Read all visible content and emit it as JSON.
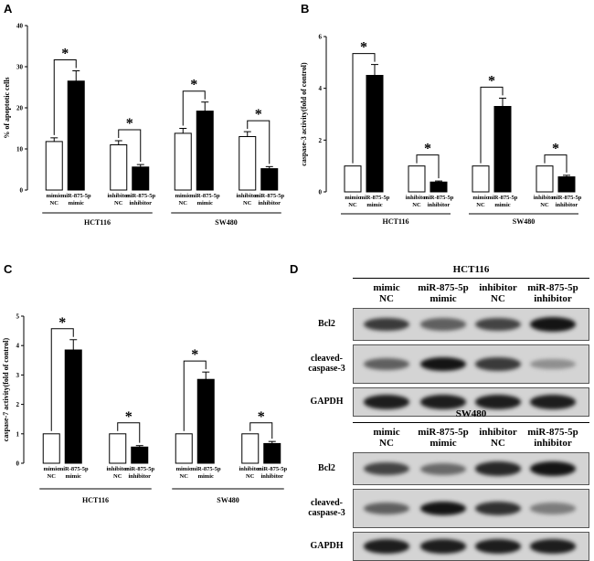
{
  "panels": [
    {
      "id": "A",
      "letter": "A",
      "ylabel": "% of apoptotic cells",
      "yticks": [
        0,
        10,
        20,
        30,
        40
      ],
      "ylim": [
        0,
        40
      ],
      "groups": [
        "HCT116",
        "SW480"
      ]
    },
    {
      "id": "B",
      "letter": "B",
      "ylabel": "caspase-3 activity(fold of control)",
      "yticks": [
        0,
        2,
        4,
        6
      ],
      "ylim": [
        0,
        6
      ],
      "groups": [
        "HCT116",
        "SW480"
      ]
    },
    {
      "id": "C",
      "letter": "C",
      "ylabel": "caspase-7 activity(fold of control)",
      "yticks": [
        0,
        1,
        2,
        3,
        4,
        5
      ],
      "ylim": [
        0,
        5
      ],
      "groups": [
        "HCT116",
        "SW480"
      ]
    }
  ],
  "chart_data": [
    {
      "type": "bar",
      "title": "",
      "ylabel": "% of apoptotic cells",
      "ylim": [
        0,
        40
      ],
      "categories": [
        "mimic NC",
        "miR-875-5p mimic",
        "inhibitor NC",
        "miR-875-5p inhibitor",
        "mimic NC",
        "miR-875-5p mimic",
        "inhibitor NC",
        "miR-875-5p inhibitor"
      ],
      "category_lines": [
        [
          "mimic",
          "NC"
        ],
        [
          "miR-875-5p",
          "mimic"
        ],
        [
          "inhibitor",
          "NC"
        ],
        [
          "miR-875-5p",
          "inhibitor"
        ],
        [
          "mimic",
          "NC"
        ],
        [
          "miR-875-5p",
          "mimic"
        ],
        [
          "inhibitor",
          "NC"
        ],
        [
          "miR-875-5p",
          "inhibitor"
        ]
      ],
      "values": [
        11.8,
        26.5,
        11.0,
        5.6,
        13.8,
        19.2,
        13.0,
        5.2
      ],
      "errors": [
        0.9,
        2.5,
        1.0,
        0.6,
        1.2,
        2.2,
        1.2,
        0.5
      ],
      "fill": [
        "white",
        "black",
        "white",
        "black",
        "white",
        "black",
        "white",
        "black"
      ],
      "significance": [
        [
          0,
          1,
          "*"
        ],
        [
          2,
          3,
          "*"
        ],
        [
          4,
          5,
          "*"
        ],
        [
          6,
          7,
          "*"
        ]
      ],
      "groups": [
        {
          "name": "HCT116",
          "from": 0,
          "to": 3
        },
        {
          "name": "SW480",
          "from": 4,
          "to": 7
        }
      ]
    },
    {
      "type": "bar",
      "title": "",
      "ylabel": "caspase-3 activity(fold of control)",
      "ylim": [
        0,
        6
      ],
      "categories": [
        "mimic NC",
        "miR-875-5p mimic",
        "inhibitor NC",
        "miR-875-5p inhibitor",
        "mimic NC",
        "miR-875-5p mimic",
        "inhibitor NC",
        "miR-875-5p inhibitor"
      ],
      "category_lines": [
        [
          "mimic",
          "NC"
        ],
        [
          "miR-875-5p",
          "mimic"
        ],
        [
          "inhibitor",
          "NC"
        ],
        [
          "miR-875-5p",
          "inhibitor"
        ],
        [
          "mimic",
          "NC"
        ],
        [
          "miR-875-5p",
          "mimic"
        ],
        [
          "inhibitor",
          "NC"
        ],
        [
          "miR-875-5p",
          "inhibitor"
        ]
      ],
      "values": [
        1.0,
        4.5,
        1.0,
        0.38,
        1.0,
        3.3,
        1.0,
        0.58
      ],
      "errors": [
        0,
        0.42,
        0,
        0.04,
        0,
        0.32,
        0,
        0.06
      ],
      "fill": [
        "white",
        "black",
        "white",
        "black",
        "white",
        "black",
        "white",
        "black"
      ],
      "significance": [
        [
          0,
          1,
          "*"
        ],
        [
          2,
          3,
          "*"
        ],
        [
          4,
          5,
          "*"
        ],
        [
          6,
          7,
          "*"
        ]
      ],
      "groups": [
        {
          "name": "HCT116",
          "from": 0,
          "to": 3
        },
        {
          "name": "SW480",
          "from": 4,
          "to": 7
        }
      ]
    },
    {
      "type": "bar",
      "title": "",
      "ylabel": "caspase-7 activity(fold of control)",
      "ylim": [
        0,
        5
      ],
      "categories": [
        "mimic NC",
        "miR-875-5p mimic",
        "inhibitor NC",
        "miR-875-5p inhibitor",
        "mimic NC",
        "miR-875-5p mimic",
        "inhibitor NC",
        "miR-875-5p inhibitor"
      ],
      "category_lines": [
        [
          "mimic",
          "NC"
        ],
        [
          "miR-875-5p",
          "mimic"
        ],
        [
          "inhibitor",
          "NC"
        ],
        [
          "miR-875-5p",
          "inhibitor"
        ],
        [
          "mimic",
          "NC"
        ],
        [
          "miR-875-5p",
          "mimic"
        ],
        [
          "inhibitor",
          "NC"
        ],
        [
          "miR-875-5p",
          "inhibitor"
        ]
      ],
      "values": [
        1.0,
        3.85,
        1.0,
        0.55,
        1.0,
        2.85,
        1.0,
        0.67
      ],
      "errors": [
        0,
        0.35,
        0,
        0.05,
        0,
        0.25,
        0,
        0.07
      ],
      "fill": [
        "white",
        "black",
        "white",
        "black",
        "white",
        "black",
        "white",
        "black"
      ],
      "significance": [
        [
          0,
          1,
          "*"
        ],
        [
          2,
          3,
          "*"
        ],
        [
          4,
          5,
          "*"
        ],
        [
          6,
          7,
          "*"
        ]
      ],
      "groups": [
        {
          "name": "HCT116",
          "from": 0,
          "to": 3
        },
        {
          "name": "SW480",
          "from": 4,
          "to": 7
        }
      ]
    }
  ],
  "western": {
    "letter": "D",
    "blocks": [
      {
        "cell_line": "HCT116",
        "columns": [
          [
            "mimic",
            "NC"
          ],
          [
            "miR-875-5p",
            "mimic"
          ],
          [
            "inhibitor",
            "NC"
          ],
          [
            "miR-875-5p",
            "inhibitor"
          ]
        ],
        "rows": [
          {
            "label": [
              "Bcl2"
            ],
            "intensity": [
              0.75,
              0.55,
              0.7,
              0.95
            ]
          },
          {
            "label": [
              "cleaved-",
              "caspase-3"
            ],
            "intensity": [
              0.55,
              0.95,
              0.75,
              0.3
            ]
          },
          {
            "label": [
              "GAPDH"
            ],
            "intensity": [
              0.9,
              0.9,
              0.9,
              0.9
            ]
          }
        ]
      },
      {
        "cell_line": "SW480",
        "columns": [
          [
            "mimic",
            "NC"
          ],
          [
            "miR-875-5p",
            "mimic"
          ],
          [
            "inhibitor",
            "NC"
          ],
          [
            "miR-875-5p",
            "inhibitor"
          ]
        ],
        "rows": [
          {
            "label": [
              "Bcl2"
            ],
            "intensity": [
              0.7,
              0.5,
              0.85,
              0.95
            ]
          },
          {
            "label": [
              "cleaved-",
              "caspase-3"
            ],
            "intensity": [
              0.55,
              0.95,
              0.8,
              0.4
            ]
          },
          {
            "label": [
              "GAPDH"
            ],
            "intensity": [
              0.9,
              0.9,
              0.9,
              0.9
            ]
          }
        ]
      }
    ]
  }
}
